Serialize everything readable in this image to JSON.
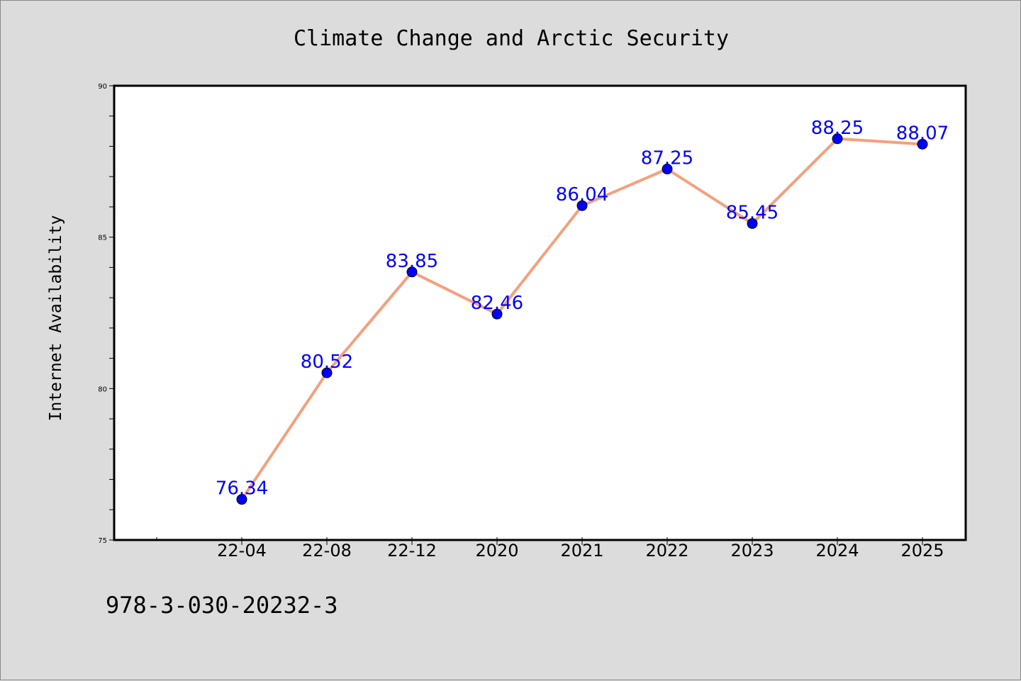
{
  "chart_data": {
    "type": "line",
    "title": "Climate Change and Arctic Security",
    "ylabel": "Internet Availability",
    "xlabel": "",
    "categories": [
      "22-04",
      "22-08",
      "22-12",
      "2020",
      "2021",
      "2022",
      "2023",
      "2024",
      "2025"
    ],
    "series": [
      {
        "values": [
          76.34,
          80.52,
          83.85,
          82.46,
          86.04,
          87.25,
          85.45,
          88.25,
          88.07
        ]
      }
    ],
    "data_labels": [
      "76.34",
      "80.52",
      "83.85",
      "82.46",
      "86.04",
      "87.25",
      "85.45",
      "88.25",
      "88.07"
    ],
    "ylim": [
      75,
      90
    ],
    "yticks": [
      "75",
      "80",
      "85",
      "90"
    ],
    "line_color": "#f4a07e",
    "marker_color": "#0000ff",
    "label_color": "#0000ff",
    "grid": false,
    "legend": "none"
  },
  "footer_text": "978-3-030-20232-3"
}
